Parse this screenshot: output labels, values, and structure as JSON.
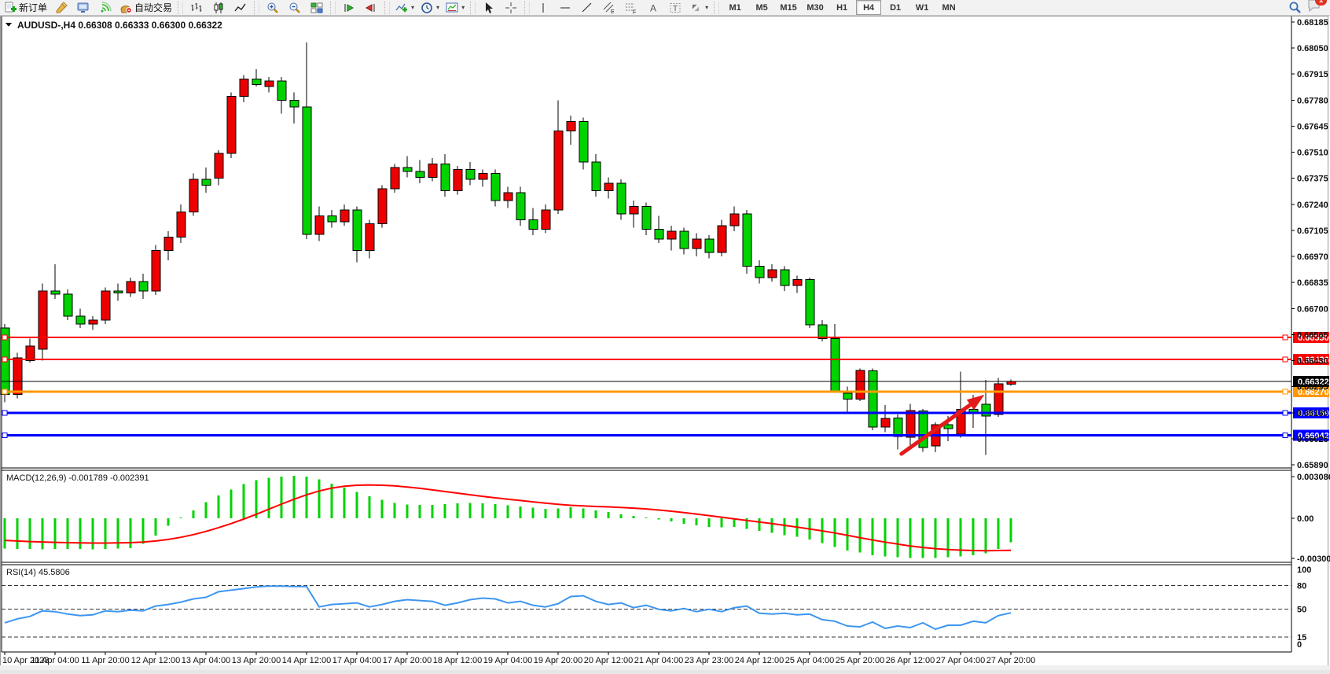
{
  "toolbar": {
    "new_order": "新订单",
    "auto_trading": "自动交易",
    "timeframes": [
      "M1",
      "M5",
      "M15",
      "M30",
      "H1",
      "H4",
      "D1",
      "W1",
      "MN"
    ],
    "active_timeframe": "H4",
    "notification_badge": "1"
  },
  "chart": {
    "title": "AUDUSD-,H4 0.66308 0.66333 0.66300 0.66322",
    "price_axis_ticks": [
      "0.68185",
      "0.68050",
      "0.67915",
      "0.67780",
      "0.67645",
      "0.67510",
      "0.67375",
      "0.67240",
      "0.67105",
      "0.66970",
      "0.66835",
      "0.66700",
      "0.66565",
      "0.66430",
      "0.66295",
      "0.66160",
      "0.66025",
      "0.65890"
    ],
    "time_axis_labels": [
      "10 Apr 2023",
      "11 Apr 04:00",
      "11 Apr 20:00",
      "12 Apr 12:00",
      "13 Apr 04:00",
      "13 Apr 20:00",
      "14 Apr 12:00",
      "17 Apr 04:00",
      "17 Apr 20:00",
      "18 Apr 12:00",
      "19 Apr 04:00",
      "19 Apr 20:00",
      "20 Apr 12:00",
      "21 Apr 04:00",
      "23 Apr 23:00",
      "24 Apr 12:00",
      "25 Apr 04:00",
      "25 Apr 20:00",
      "26 Apr 12:00",
      "27 Apr 04:00",
      "27 Apr 20:00"
    ],
    "hlines": [
      {
        "price": 0.6655,
        "label": "0.66550",
        "color": "#ff0000",
        "width": 2
      },
      {
        "price": 0.66436,
        "label": "0.66436",
        "color": "#ff0000",
        "width": 2
      },
      {
        "price": 0.6627,
        "label": "0.66270",
        "color": "#ff9800",
        "width": 3
      },
      {
        "price": 0.66159,
        "label": "0.66159",
        "color": "#0000ff",
        "width": 3
      },
      {
        "price": 0.66042,
        "label": "0.66042",
        "color": "#0000ff",
        "width": 3
      }
    ],
    "current_price": {
      "value": 0.66322,
      "label": "0.66322",
      "color": "#000000"
    },
    "colors": {
      "up": "#ee0000",
      "down": "#00d300",
      "wick": "#000000",
      "macd_hist": "#00d300",
      "macd_signal": "#ff0000",
      "rsi": "#3d96f0",
      "price_line": "#000000",
      "arrow": "#e31b1b"
    },
    "arrow": {
      "from_bar": 71.3,
      "from_price": 0.65947,
      "to_bar": 77.9,
      "to_price": 0.66253
    }
  },
  "indicators": {
    "macd": {
      "label": "MACD(12,26,9) -0.001789 -0.002391",
      "axis": [
        "0.003086",
        "0.00",
        "-0.003003"
      ]
    },
    "rsi": {
      "label": "RSI(14) 45.5806",
      "axis": [
        "100",
        "80",
        "50",
        "15",
        "0"
      ],
      "levels": [
        80,
        50,
        15
      ]
    }
  },
  "chart_data": {
    "type": "candlestick",
    "symbol": "AUDUSD-",
    "timeframe": "H4",
    "title": "AUDUSD-,H4 0.66308 0.66333 0.66300 0.66322",
    "up_color_meaning": "red = bullish (close>open), green = bearish",
    "ylim": [
      0.6589,
      0.68185
    ],
    "ohlc": [
      [
        0.666,
        0.6662,
        0.66215,
        0.66255
      ],
      [
        0.66255,
        0.6647,
        0.66235,
        0.66445
      ],
      [
        0.6643,
        0.66545,
        0.6642,
        0.66505
      ],
      [
        0.6649,
        0.6683,
        0.6643,
        0.6679
      ],
      [
        0.6679,
        0.6693,
        0.6675,
        0.66775
      ],
      [
        0.66775,
        0.668,
        0.6664,
        0.6666
      ],
      [
        0.6666,
        0.667,
        0.666,
        0.6662
      ],
      [
        0.6662,
        0.6666,
        0.6659,
        0.6664
      ],
      [
        0.6664,
        0.6681,
        0.6662,
        0.6679
      ],
      [
        0.6679,
        0.6683,
        0.6674,
        0.6678
      ],
      [
        0.6678,
        0.6686,
        0.6676,
        0.6684
      ],
      [
        0.6684,
        0.6688,
        0.6675,
        0.6679
      ],
      [
        0.6679,
        0.6703,
        0.6677,
        0.67
      ],
      [
        0.67,
        0.671,
        0.6695,
        0.6707
      ],
      [
        0.6707,
        0.6724,
        0.6704,
        0.672
      ],
      [
        0.672,
        0.674,
        0.6718,
        0.6737
      ],
      [
        0.6737,
        0.6743,
        0.673,
        0.6734
      ],
      [
        0.67375,
        0.6752,
        0.6734,
        0.67505
      ],
      [
        0.67505,
        0.6782,
        0.6748,
        0.678
      ],
      [
        0.678,
        0.6791,
        0.6777,
        0.6789
      ],
      [
        0.6789,
        0.6794,
        0.6785,
        0.6786
      ],
      [
        0.6785,
        0.679,
        0.6782,
        0.6788
      ],
      [
        0.6788,
        0.679,
        0.6771,
        0.6778
      ],
      [
        0.6778,
        0.6782,
        0.6766,
        0.67745
      ],
      [
        0.67745,
        0.6808,
        0.6706,
        0.67085
      ],
      [
        0.67085,
        0.6723,
        0.6705,
        0.6718
      ],
      [
        0.6718,
        0.6721,
        0.6712,
        0.6715
      ],
      [
        0.6715,
        0.6724,
        0.6713,
        0.6721
      ],
      [
        0.6721,
        0.6723,
        0.6694,
        0.67
      ],
      [
        0.67,
        0.6716,
        0.6696,
        0.6714
      ],
      [
        0.6714,
        0.6734,
        0.6712,
        0.6732
      ],
      [
        0.6732,
        0.6745,
        0.673,
        0.6743
      ],
      [
        0.6743,
        0.6749,
        0.6738,
        0.6741
      ],
      [
        0.6741,
        0.6747,
        0.6735,
        0.6738
      ],
      [
        0.6738,
        0.6748,
        0.6736,
        0.6745
      ],
      [
        0.6745,
        0.675,
        0.6728,
        0.6731
      ],
      [
        0.6731,
        0.6744,
        0.6729,
        0.6742
      ],
      [
        0.6742,
        0.6746,
        0.6734,
        0.6737
      ],
      [
        0.6737,
        0.6742,
        0.6733,
        0.674
      ],
      [
        0.674,
        0.6742,
        0.6723,
        0.6726
      ],
      [
        0.6726,
        0.6733,
        0.6722,
        0.673
      ],
      [
        0.673,
        0.6733,
        0.6713,
        0.6716
      ],
      [
        0.6716,
        0.6722,
        0.6708,
        0.6711
      ],
      [
        0.6711,
        0.6724,
        0.6709,
        0.6721
      ],
      [
        0.6721,
        0.6778,
        0.6719,
        0.6762
      ],
      [
        0.6762,
        0.677,
        0.6755,
        0.6767
      ],
      [
        0.6767,
        0.6769,
        0.6742,
        0.6746
      ],
      [
        0.6746,
        0.675,
        0.6728,
        0.6731
      ],
      [
        0.6731,
        0.6738,
        0.6727,
        0.6735
      ],
      [
        0.6735,
        0.6737,
        0.6716,
        0.6719
      ],
      [
        0.6719,
        0.6726,
        0.6712,
        0.6723
      ],
      [
        0.6723,
        0.6725,
        0.6708,
        0.6711
      ],
      [
        0.6711,
        0.6718,
        0.6704,
        0.6706
      ],
      [
        0.6706,
        0.6713,
        0.67,
        0.671
      ],
      [
        0.671,
        0.6712,
        0.6698,
        0.6701
      ],
      [
        0.6701,
        0.6709,
        0.6697,
        0.6706
      ],
      [
        0.6706,
        0.6708,
        0.6696,
        0.6699
      ],
      [
        0.6699,
        0.6716,
        0.6697,
        0.6713
      ],
      [
        0.6713,
        0.6723,
        0.671,
        0.6719
      ],
      [
        0.6719,
        0.6721,
        0.6688,
        0.6692
      ],
      [
        0.6692,
        0.6695,
        0.6683,
        0.6686
      ],
      [
        0.6686,
        0.6693,
        0.6684,
        0.669
      ],
      [
        0.669,
        0.6692,
        0.6679,
        0.6682
      ],
      [
        0.6682,
        0.6687,
        0.6678,
        0.6685
      ],
      [
        0.6685,
        0.6686,
        0.666,
        0.66615
      ],
      [
        0.66615,
        0.6664,
        0.6653,
        0.66545
      ],
      [
        0.66545,
        0.6662,
        0.66265,
        0.66272
      ],
      [
        0.6626,
        0.66295,
        0.66155,
        0.6623
      ],
      [
        0.6623,
        0.6639,
        0.6622,
        0.6638
      ],
      [
        0.66377,
        0.6639,
        0.6607,
        0.66085
      ],
      [
        0.66085,
        0.662,
        0.6606,
        0.6613
      ],
      [
        0.66133,
        0.6615,
        0.6597,
        0.66036
      ],
      [
        0.66033,
        0.66205,
        0.65985,
        0.66172
      ],
      [
        0.66169,
        0.6618,
        0.65958,
        0.65979
      ],
      [
        0.65988,
        0.6611,
        0.65955,
        0.66097
      ],
      [
        0.66097,
        0.66142,
        0.66013,
        0.66078
      ],
      [
        0.66048,
        0.66372,
        0.6603,
        0.66177
      ],
      [
        0.66177,
        0.66252,
        0.66082,
        0.66158
      ],
      [
        0.66204,
        0.6633,
        0.65941,
        0.66143
      ],
      [
        0.6615,
        0.66341,
        0.66138,
        0.6631
      ],
      [
        0.66308,
        0.66333,
        0.663,
        0.66322
      ]
    ],
    "macd_histogram": [
      -0.00225,
      -0.0023,
      -0.00228,
      -0.00232,
      -0.0023,
      -0.00228,
      -0.0023,
      -0.00231,
      -0.00229,
      -0.00226,
      -0.00222,
      -0.0019,
      -0.0013,
      -0.00055,
      5e-05,
      0.0006,
      0.0012,
      0.0017,
      0.00215,
      0.00255,
      0.00285,
      0.00303,
      0.00313,
      0.00317,
      0.00312,
      0.0029,
      0.0026,
      0.00228,
      0.00198,
      0.00165,
      0.00138,
      0.00116,
      0.00104,
      0.00099,
      0.00101,
      0.00107,
      0.00112,
      0.00115,
      0.00113,
      0.00106,
      0.00098,
      0.00088,
      0.00078,
      0.0007,
      0.00074,
      0.00081,
      0.00073,
      0.00058,
      0.00046,
      0.0003,
      0.00018,
      6e-05,
      -0.0001,
      -0.00024,
      -0.0004,
      -0.00052,
      -0.00064,
      -0.00067,
      -0.00066,
      -0.0008,
      -0.00095,
      -0.0011,
      -0.00125,
      -0.00138,
      -0.0016,
      -0.00185,
      -0.00215,
      -0.0024,
      -0.00255,
      -0.00275,
      -0.00285,
      -0.00292,
      -0.00296,
      -0.00298,
      -0.00296,
      -0.00292,
      -0.00285,
      -0.00277,
      -0.00261,
      -0.00229,
      -0.00179
    ],
    "macd_signal": [
      -0.00165,
      -0.0017,
      -0.00174,
      -0.00177,
      -0.0018,
      -0.00182,
      -0.00184,
      -0.00185,
      -0.00185,
      -0.00184,
      -0.00182,
      -0.00178,
      -0.0017,
      -0.00158,
      -0.00142,
      -0.00122,
      -0.00098,
      -0.0007,
      -0.0004,
      -6e-05,
      0.0003,
      0.00068,
      0.00106,
      0.00142,
      0.00175,
      0.00204,
      0.00226,
      0.0024,
      0.00247,
      0.00249,
      0.00247,
      0.00242,
      0.00234,
      0.00224,
      0.00212,
      0.002,
      0.00188,
      0.00176,
      0.00164,
      0.00153,
      0.00143,
      0.00133,
      0.00123,
      0.00113,
      0.00104,
      0.00097,
      0.00092,
      0.00088,
      0.00085,
      0.00081,
      0.00076,
      0.0007,
      0.00062,
      0.00053,
      0.00043,
      0.00032,
      0.0002,
      8e-05,
      -4e-05,
      -0.00016,
      -0.00028,
      -0.0004,
      -0.00053,
      -0.00066,
      -0.0008,
      -0.00094,
      -0.0011,
      -0.00127,
      -0.00145,
      -0.00162,
      -0.00178,
      -0.00193,
      -0.00207,
      -0.00218,
      -0.00227,
      -0.00234,
      -0.00238,
      -0.00241,
      -0.00242,
      -0.00241,
      -0.00239
    ],
    "rsi": [
      33,
      38,
      41,
      48,
      47,
      44,
      42,
      43,
      48,
      47,
      49,
      48,
      54,
      56,
      59,
      63,
      65,
      72,
      74,
      76,
      78,
      79,
      79,
      78.5,
      78.5,
      53,
      56,
      57,
      58,
      53,
      56,
      60,
      62,
      61,
      60,
      55,
      58,
      62,
      64,
      63,
      58,
      60,
      55,
      53,
      57,
      66,
      67,
      60,
      56,
      58,
      52,
      55,
      50,
      48,
      51,
      47,
      50,
      47,
      52,
      54,
      45,
      44,
      45,
      43,
      44,
      37,
      35,
      29,
      28,
      34,
      26,
      29,
      27,
      33,
      25,
      30,
      30,
      35,
      33,
      42,
      45.58
    ]
  }
}
